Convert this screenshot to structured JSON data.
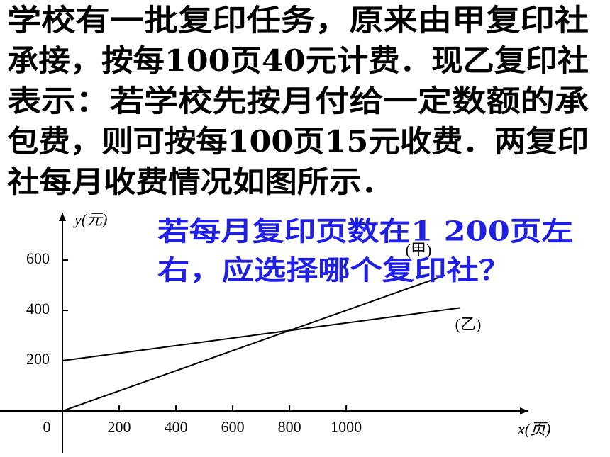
{
  "problem_lines": [
    "学校有一批复印任务，原来由甲复印社",
    "承接，按每100页40元计费．现乙复印社",
    "表示：若学校先按月付给一定数额的承",
    "包费，则可按每100页15元收费．两复印",
    "社每月收费情况如图所示．"
  ],
  "question_lines": [
    "若每月复印页数在1 200页左",
    "右，应选择哪个复印社？"
  ],
  "chart_data": {
    "type": "line",
    "xlabel": "x(页)",
    "ylabel": "y(元)",
    "xlim": [
      -220,
      1642
    ],
    "ylim": [
      -169,
      789
    ],
    "xticks": [
      0,
      200,
      400,
      600,
      800,
      1000
    ],
    "yticks": [
      200,
      400,
      600
    ],
    "series": [
      {
        "name": "(甲)",
        "color": "#000000",
        "x": [
          0,
          1350
        ],
        "values": [
          0,
          540
        ]
      },
      {
        "name": "(乙)",
        "color": "#000000",
        "x": [
          0,
          1400
        ],
        "values": [
          200,
          410
        ]
      }
    ]
  }
}
